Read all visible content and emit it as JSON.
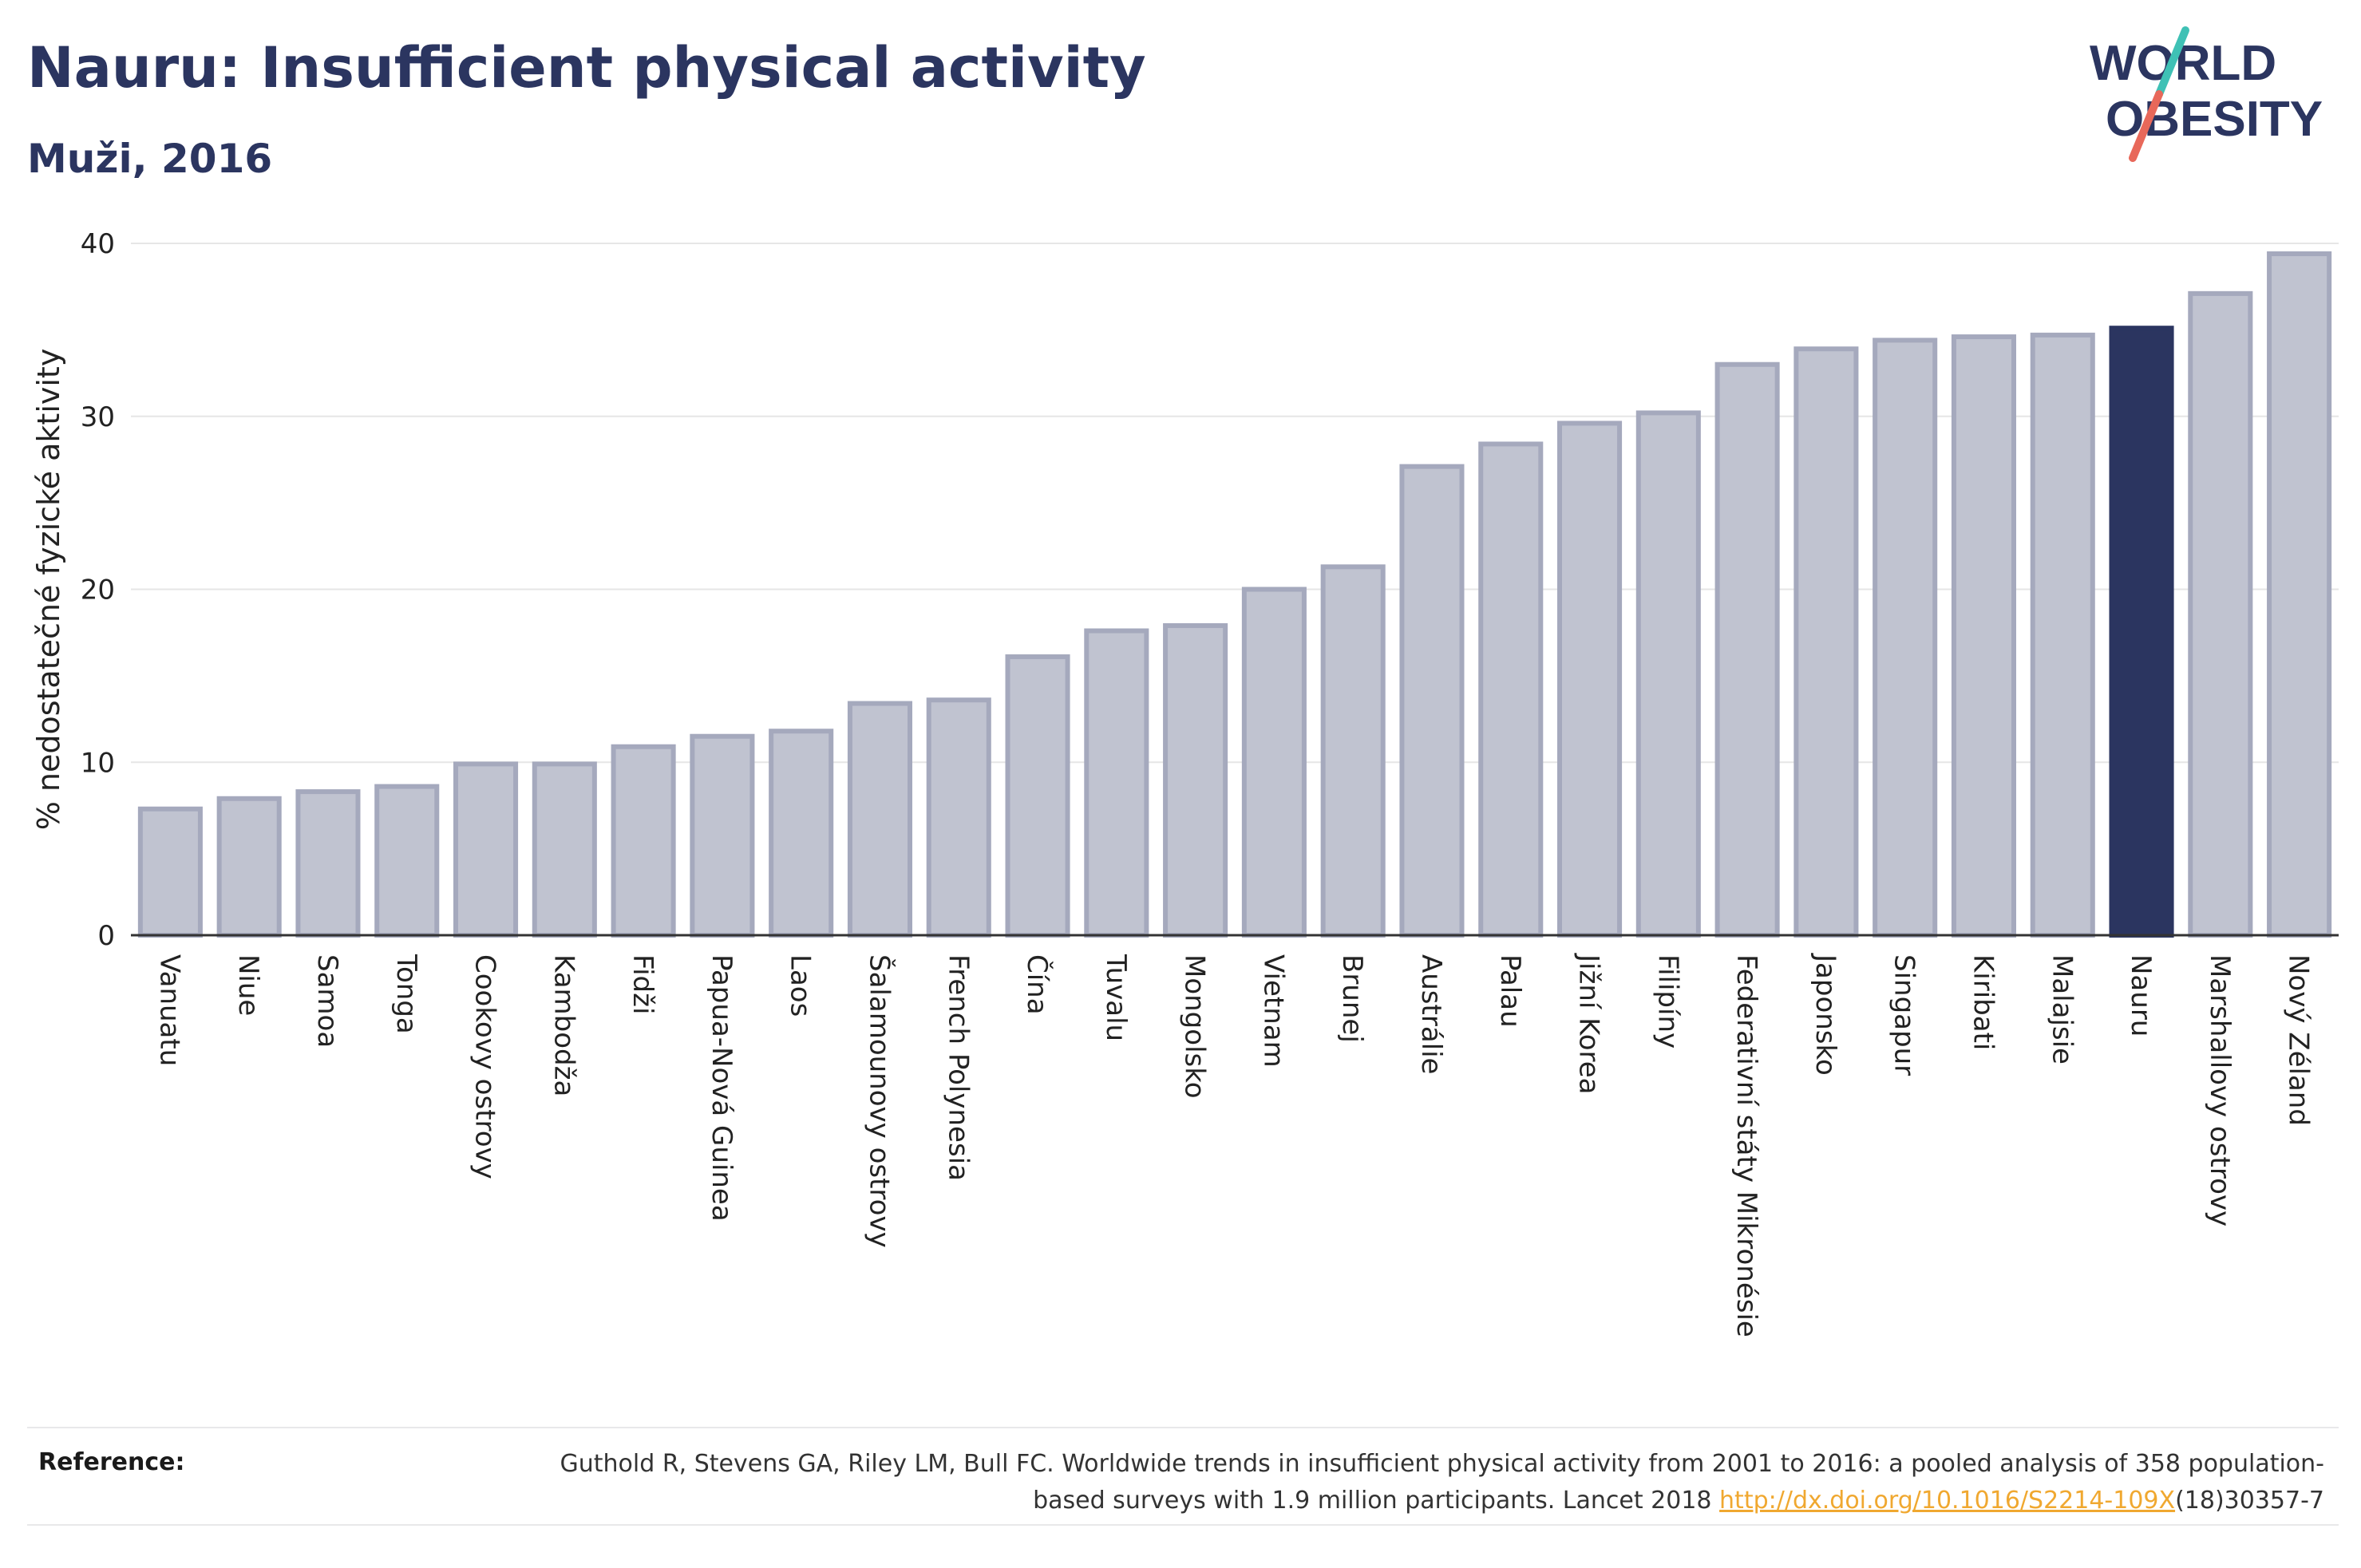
{
  "header": {
    "title": "Nauru: Insufficient physical activity",
    "subtitle": "Muži, 2016"
  },
  "logo": {
    "line1": "WORLD",
    "line2": "OBESITY"
  },
  "chart_data": {
    "type": "bar",
    "title": "Nauru: Insufficient physical activity",
    "subtitle": "Muži, 2016",
    "xlabel": "",
    "ylabel": "% nedostatečné fyzické aktivity",
    "ylim": [
      0,
      40
    ],
    "yticks": [
      0,
      10,
      20,
      30,
      40
    ],
    "grid": true,
    "highlight": "Nauru",
    "colors": {
      "bar": "#c0c3d0",
      "bar_edge": "#a5a9bd",
      "highlight": "#2b3560",
      "grid": "#e6e6e6",
      "axis": "#333333"
    },
    "categories": [
      "Vanuatu",
      "Niue",
      "Samoa",
      "Tonga",
      "Cookovy ostrovy",
      "Kambodža",
      "Fidži",
      "Papua-Nová Guinea",
      "Laos",
      "Šalamounovy ostrovy",
      "French Polynesia",
      "Čína",
      "Tuvalu",
      "Mongolsko",
      "Vietnam",
      "Brunej",
      "Austrálie",
      "Palau",
      "Jižní Korea",
      "Filipíny",
      "Federativní státy Mikronésie",
      "Japonsko",
      "Singapur",
      "Kiribati",
      "Malajsie",
      "Nauru",
      "Marshallovy ostrovy",
      "Nový Zéland"
    ],
    "values": [
      7.3,
      7.9,
      8.3,
      8.6,
      9.9,
      9.9,
      10.9,
      11.5,
      11.8,
      13.4,
      13.6,
      16.1,
      17.6,
      17.9,
      20.0,
      21.3,
      27.1,
      28.4,
      29.6,
      30.2,
      33.0,
      33.9,
      34.4,
      34.6,
      34.7,
      35.1,
      37.1,
      39.4
    ]
  },
  "footer": {
    "reference_label": "Reference:",
    "reference_text": "Guthold R, Stevens GA, Riley LM, Bull FC. Worldwide trends in insufficient physical activity from 2001 to 2016: a pooled analysis of 358 population-based surveys with 1.9 million participants. Lancet 2018",
    "reference_link": "http://dx.doi.org/10.1016/S2214-109X",
    "reference_suffix": "(18)30357-7"
  }
}
